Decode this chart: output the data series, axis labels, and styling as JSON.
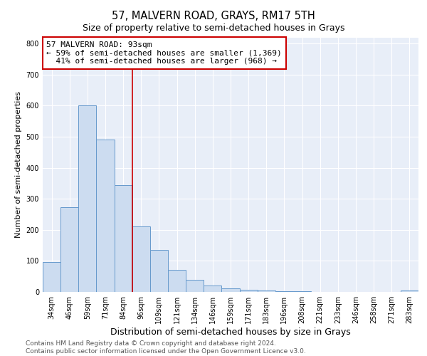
{
  "title": "57, MALVERN ROAD, GRAYS, RM17 5TH",
  "subtitle": "Size of property relative to semi-detached houses in Grays",
  "xlabel": "Distribution of semi-detached houses by size in Grays",
  "ylabel": "Number of semi-detached properties",
  "categories": [
    "34sqm",
    "46sqm",
    "59sqm",
    "71sqm",
    "84sqm",
    "96sqm",
    "109sqm",
    "121sqm",
    "134sqm",
    "146sqm",
    "159sqm",
    "171sqm",
    "183sqm",
    "196sqm",
    "208sqm",
    "221sqm",
    "233sqm",
    "246sqm",
    "258sqm",
    "271sqm",
    "283sqm"
  ],
  "values": [
    97,
    272,
    600,
    490,
    345,
    210,
    135,
    70,
    40,
    20,
    12,
    8,
    5,
    3,
    2,
    1,
    1,
    1,
    0,
    0,
    5
  ],
  "bar_color": "#ccdcf0",
  "bar_edge_color": "#6699cc",
  "property_label": "57 MALVERN ROAD: 93sqm",
  "pct_smaller": 59,
  "count_smaller": 1369,
  "pct_larger": 41,
  "count_larger": 968,
  "annotation_box_color": "#ffffff",
  "annotation_box_edge_color": "#cc0000",
  "vline_color": "#cc0000",
  "vline_x": 4.5,
  "ylim": [
    0,
    820
  ],
  "yticks": [
    0,
    100,
    200,
    300,
    400,
    500,
    600,
    700,
    800
  ],
  "footnote1": "Contains HM Land Registry data © Crown copyright and database right 2024.",
  "footnote2": "Contains public sector information licensed under the Open Government Licence v3.0.",
  "title_fontsize": 10.5,
  "subtitle_fontsize": 9,
  "xlabel_fontsize": 9,
  "ylabel_fontsize": 8,
  "tick_fontsize": 7,
  "footnote_fontsize": 6.5,
  "annotation_fontsize": 8
}
